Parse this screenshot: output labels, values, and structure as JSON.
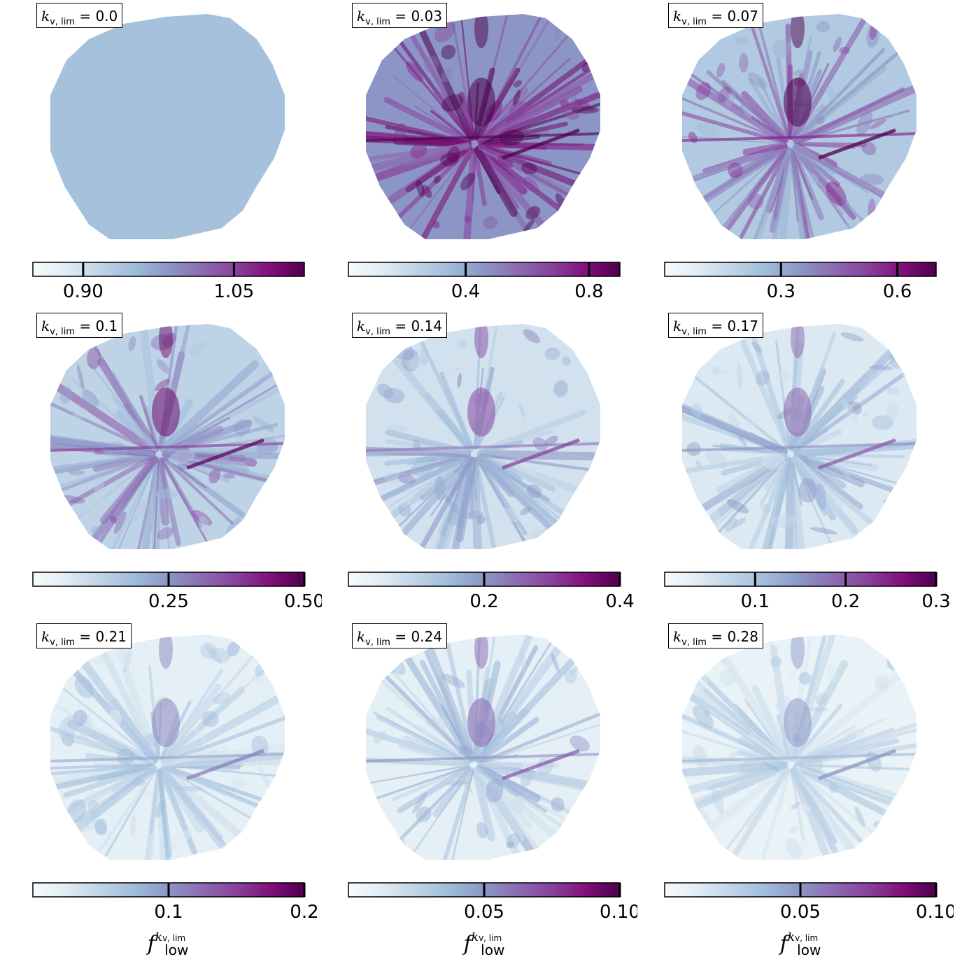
{
  "chart_data": [
    {
      "type": "heatmap",
      "label_sub": "v, lim",
      "label_value": "= 0.0",
      "colorbar": {
        "min": 0.85,
        "max": 1.12,
        "ticks": [
          {
            "v": 0.9,
            "t": "0.90"
          },
          {
            "v": 1.05,
            "t": "1.05"
          }
        ]
      },
      "fill_level": 0.35,
      "intensity": 0.0
    },
    {
      "type": "heatmap",
      "label_sub": "v, lim",
      "label_value": "= 0.03",
      "colorbar": {
        "min": 0.02,
        "max": 0.9,
        "ticks": [
          {
            "v": 0.4,
            "t": "0.4"
          },
          {
            "v": 0.8,
            "t": "0.8"
          }
        ]
      },
      "fill_level": 0.5,
      "intensity": 0.9
    },
    {
      "type": "heatmap",
      "label_sub": "v, lim",
      "label_value": "= 0.07",
      "colorbar": {
        "min": 0.0,
        "max": 0.7,
        "ticks": [
          {
            "v": 0.3,
            "t": "0.3"
          },
          {
            "v": 0.6,
            "t": "0.6"
          }
        ]
      },
      "fill_level": 0.3,
      "intensity": 0.8
    },
    {
      "type": "heatmap",
      "label_sub": "v, lim",
      "label_value": "= 0.1",
      "colorbar": {
        "min": 0.0,
        "max": 0.5,
        "ticks": [
          {
            "v": 0.25,
            "t": "0.25"
          },
          {
            "v": 0.5,
            "t": "0.50"
          }
        ]
      },
      "fill_level": 0.25,
      "intensity": 0.75
    },
    {
      "type": "heatmap",
      "label_sub": "v, lim",
      "label_value": "= 0.14",
      "colorbar": {
        "min": 0.0,
        "max": 0.4,
        "ticks": [
          {
            "v": 0.2,
            "t": "0.2"
          },
          {
            "v": 0.4,
            "t": "0.4"
          }
        ]
      },
      "fill_level": 0.18,
      "intensity": 0.6
    },
    {
      "type": "heatmap",
      "label_sub": "v, lim",
      "label_value": "= 0.17",
      "colorbar": {
        "min": 0.0,
        "max": 0.3,
        "ticks": [
          {
            "v": 0.1,
            "t": "0.1"
          },
          {
            "v": 0.2,
            "t": "0.2"
          },
          {
            "v": 0.3,
            "t": "0.3"
          }
        ]
      },
      "fill_level": 0.14,
      "intensity": 0.55
    },
    {
      "type": "heatmap",
      "label_sub": "v, lim",
      "label_value": "= 0.21",
      "colorbar": {
        "min": 0.0,
        "max": 0.2,
        "ticks": [
          {
            "v": 0.1,
            "t": "0.1"
          },
          {
            "v": 0.2,
            "t": "0.2"
          }
        ]
      },
      "fill_level": 0.1,
      "intensity": 0.5
    },
    {
      "type": "heatmap",
      "label_sub": "v, lim",
      "label_value": "= 0.24",
      "colorbar": {
        "min": 0.0,
        "max": 0.1,
        "ticks": [
          {
            "v": 0.05,
            "t": "0.05"
          },
          {
            "v": 0.1,
            "t": "0.10"
          }
        ]
      },
      "fill_level": 0.1,
      "intensity": 0.6
    },
    {
      "type": "heatmap",
      "label_sub": "v, lim",
      "label_value": "= 0.28",
      "colorbar": {
        "min": 0.0,
        "max": 0.1,
        "ticks": [
          {
            "v": 0.05,
            "t": "0.05"
          },
          {
            "v": 0.1,
            "t": "0.10"
          }
        ]
      },
      "fill_level": 0.08,
      "intensity": 0.45
    }
  ],
  "xlabel": {
    "base": "f",
    "sup": "k",
    "sup_sub": "v, lim",
    "sub": "low"
  },
  "label_symbol": "k",
  "colormap": [
    "#f7fcfd",
    "#e0ecf4",
    "#bfd3e6",
    "#9ebcda",
    "#8c96c6",
    "#8c6bb1",
    "#88419d",
    "#810f7c",
    "#4d004b"
  ]
}
